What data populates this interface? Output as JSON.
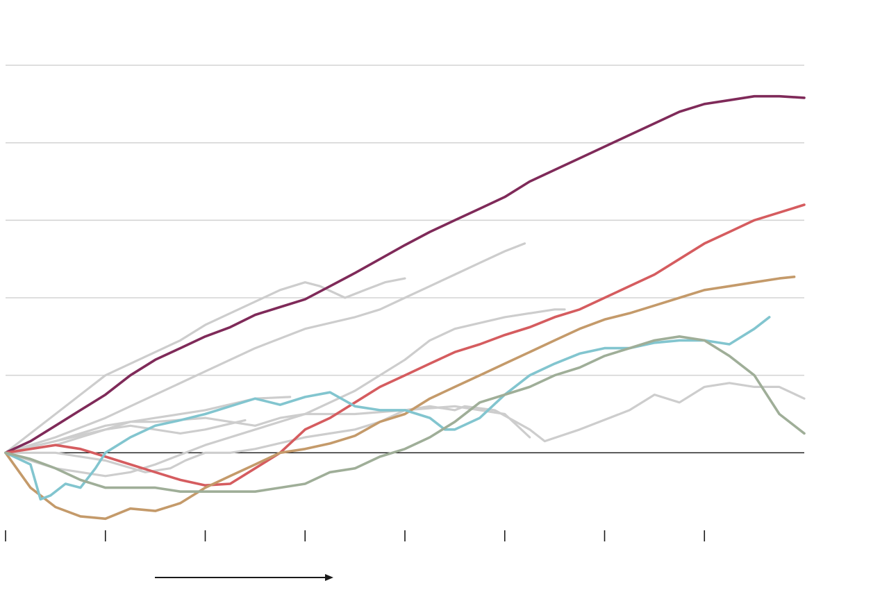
{
  "chart_data": {
    "type": "line",
    "title": "",
    "xlabel": "",
    "ylabel": "",
    "xlim": [
      0,
      160
    ],
    "ylim": [
      -1,
      5
    ],
    "grid": true,
    "gridlines_y": [
      -1,
      0,
      1,
      2,
      3,
      4,
      5
    ],
    "zero_line": 0,
    "x_ticks": [
      0,
      20,
      40,
      60,
      80,
      100,
      120,
      140
    ],
    "x_tick_labels": [],
    "has_direction_arrow": true,
    "colors": {
      "background_series": "#cdcdcd",
      "purple": "#7f2a59",
      "red": "#d55c5f",
      "tan": "#c49a6a",
      "teal": "#82c5cf",
      "green": "#9fae98",
      "grid": "#d4d4d4",
      "axis": "#1a1a1a"
    },
    "series": [
      {
        "color": "#cdcdcd",
        "background": true,
        "x": [
          0,
          5,
          10,
          15,
          20,
          25,
          30,
          35,
          40,
          45,
          50,
          55,
          60,
          63,
          68,
          72,
          76,
          80
        ],
        "y": [
          0,
          0.25,
          0.5,
          0.75,
          1.0,
          1.15,
          1.3,
          1.45,
          1.65,
          1.8,
          1.95,
          2.1,
          2.2,
          2.15,
          2.0,
          2.1,
          2.2,
          2.25
        ]
      },
      {
        "color": "#cdcdcd",
        "background": true,
        "x": [
          0,
          10,
          20,
          30,
          40,
          50,
          60,
          70,
          75,
          80,
          85,
          90,
          95,
          100,
          104
        ],
        "y": [
          0,
          0.2,
          0.45,
          0.75,
          1.05,
          1.35,
          1.6,
          1.75,
          1.85,
          2.0,
          2.15,
          2.3,
          2.45,
          2.6,
          2.7
        ]
      },
      {
        "color": "#cdcdcd",
        "background": true,
        "x": [
          0,
          10,
          20,
          25,
          30,
          40,
          50,
          55,
          60,
          70,
          80,
          85,
          90,
          100,
          110,
          112
        ],
        "y": [
          0,
          0.15,
          0.35,
          0.4,
          0.4,
          0.45,
          0.35,
          0.45,
          0.5,
          0.8,
          1.2,
          1.45,
          1.6,
          1.75,
          1.85,
          1.85
        ]
      },
      {
        "color": "#cdcdcd",
        "background": true,
        "x": [
          0,
          10,
          20,
          25,
          30,
          40,
          50,
          57
        ],
        "y": [
          0,
          0.15,
          0.3,
          0.4,
          0.45,
          0.55,
          0.7,
          0.72
        ]
      },
      {
        "color": "#cdcdcd",
        "background": true,
        "x": [
          0,
          10,
          15,
          20,
          25,
          30,
          35,
          40,
          48
        ],
        "y": [
          0,
          0.1,
          0.2,
          0.3,
          0.35,
          0.3,
          0.25,
          0.3,
          0.42
        ]
      },
      {
        "color": "#cdcdcd",
        "background": true,
        "x": [
          0,
          10,
          20,
          28,
          33,
          36,
          40,
          45,
          50,
          60,
          70,
          75,
          80,
          85,
          90,
          92,
          98,
          105,
          108,
          115,
          125,
          130,
          135,
          140,
          145,
          150,
          155,
          160
        ],
        "y": [
          0,
          0,
          -0.1,
          -0.25,
          -0.2,
          -0.1,
          0,
          0,
          0.05,
          0.2,
          0.3,
          0.4,
          0.55,
          0.6,
          0.55,
          0.6,
          0.55,
          0.3,
          0.15,
          0.3,
          0.55,
          0.75,
          0.65,
          0.85,
          0.9,
          0.85,
          0.85,
          0.7
        ]
      },
      {
        "color": "#cdcdcd",
        "background": true,
        "x": [
          0,
          10,
          20,
          25,
          30,
          40,
          50,
          60,
          70,
          80,
          90,
          100,
          105
        ],
        "y": [
          0,
          -0.2,
          -0.3,
          -0.25,
          -0.15,
          0.1,
          0.3,
          0.5,
          0.5,
          0.55,
          0.6,
          0.5,
          0.2
        ]
      },
      {
        "color": "#7f2a59",
        "background": false,
        "x": [
          0,
          5,
          10,
          15,
          20,
          25,
          30,
          35,
          40,
          45,
          50,
          55,
          60,
          65,
          70,
          75,
          80,
          85,
          90,
          95,
          100,
          105,
          110,
          115,
          120,
          125,
          130,
          135,
          140,
          145,
          150,
          155,
          160
        ],
        "y": [
          0,
          0.15,
          0.35,
          0.55,
          0.75,
          1.0,
          1.2,
          1.35,
          1.5,
          1.62,
          1.78,
          1.88,
          1.98,
          2.15,
          2.32,
          2.5,
          2.68,
          2.85,
          3.0,
          3.15,
          3.3,
          3.5,
          3.65,
          3.8,
          3.95,
          4.1,
          4.25,
          4.4,
          4.5,
          4.55,
          4.6,
          4.6,
          4.58
        ]
      },
      {
        "color": "#d55c5f",
        "background": false,
        "x": [
          0,
          5,
          10,
          15,
          20,
          25,
          30,
          35,
          40,
          45,
          50,
          55,
          60,
          65,
          70,
          75,
          80,
          85,
          90,
          95,
          100,
          105,
          110,
          115,
          120,
          125,
          130,
          135,
          140,
          145,
          150,
          155,
          160
        ],
        "y": [
          0,
          0.05,
          0.1,
          0.05,
          -0.05,
          -0.15,
          -0.25,
          -0.35,
          -0.42,
          -0.4,
          -0.2,
          0,
          0.3,
          0.45,
          0.65,
          0.85,
          1.0,
          1.15,
          1.3,
          1.4,
          1.52,
          1.62,
          1.75,
          1.85,
          2.0,
          2.15,
          2.3,
          2.5,
          2.7,
          2.85,
          3.0,
          3.1,
          3.2
        ]
      },
      {
        "color": "#c49a6a",
        "background": false,
        "x": [
          0,
          5,
          10,
          15,
          20,
          25,
          30,
          35,
          40,
          45,
          50,
          55,
          60,
          65,
          70,
          75,
          80,
          85,
          90,
          95,
          100,
          105,
          110,
          115,
          120,
          125,
          130,
          135,
          140,
          145,
          150,
          155,
          158
        ],
        "y": [
          0,
          -0.45,
          -0.7,
          -0.82,
          -0.85,
          -0.72,
          -0.75,
          -0.65,
          -0.45,
          -0.3,
          -0.15,
          0,
          0.05,
          0.12,
          0.22,
          0.4,
          0.5,
          0.7,
          0.85,
          1.0,
          1.15,
          1.3,
          1.45,
          1.6,
          1.72,
          1.8,
          1.9,
          2.0,
          2.1,
          2.15,
          2.2,
          2.25,
          2.27
        ]
      },
      {
        "color": "#82c5cf",
        "background": false,
        "x": [
          0,
          5,
          7,
          9,
          12,
          15,
          18,
          20,
          25,
          30,
          35,
          40,
          45,
          50,
          55,
          60,
          65,
          70,
          75,
          80,
          85,
          88,
          90,
          95,
          100,
          105,
          110,
          115,
          120,
          125,
          130,
          135,
          140,
          145,
          150,
          153
        ],
        "y": [
          0,
          -0.15,
          -0.6,
          -0.55,
          -0.4,
          -0.45,
          -0.2,
          0,
          0.2,
          0.35,
          0.42,
          0.5,
          0.6,
          0.7,
          0.62,
          0.72,
          0.78,
          0.6,
          0.55,
          0.55,
          0.45,
          0.3,
          0.3,
          0.45,
          0.75,
          1.0,
          1.15,
          1.28,
          1.35,
          1.35,
          1.42,
          1.45,
          1.45,
          1.4,
          1.6,
          1.75
        ]
      },
      {
        "color": "#9fae98",
        "background": false,
        "x": [
          0,
          5,
          10,
          15,
          20,
          25,
          30,
          35,
          40,
          45,
          50,
          55,
          60,
          65,
          70,
          75,
          80,
          85,
          90,
          95,
          100,
          105,
          110,
          115,
          120,
          125,
          130,
          135,
          140,
          145,
          150,
          155,
          160
        ],
        "y": [
          0,
          -0.08,
          -0.2,
          -0.35,
          -0.45,
          -0.45,
          -0.45,
          -0.5,
          -0.5,
          -0.5,
          -0.5,
          -0.45,
          -0.4,
          -0.25,
          -0.2,
          -0.05,
          0.05,
          0.2,
          0.4,
          0.65,
          0.75,
          0.85,
          1.0,
          1.1,
          1.25,
          1.35,
          1.45,
          1.5,
          1.45,
          1.25,
          1.0,
          0.5,
          0.25
        ]
      }
    ]
  }
}
